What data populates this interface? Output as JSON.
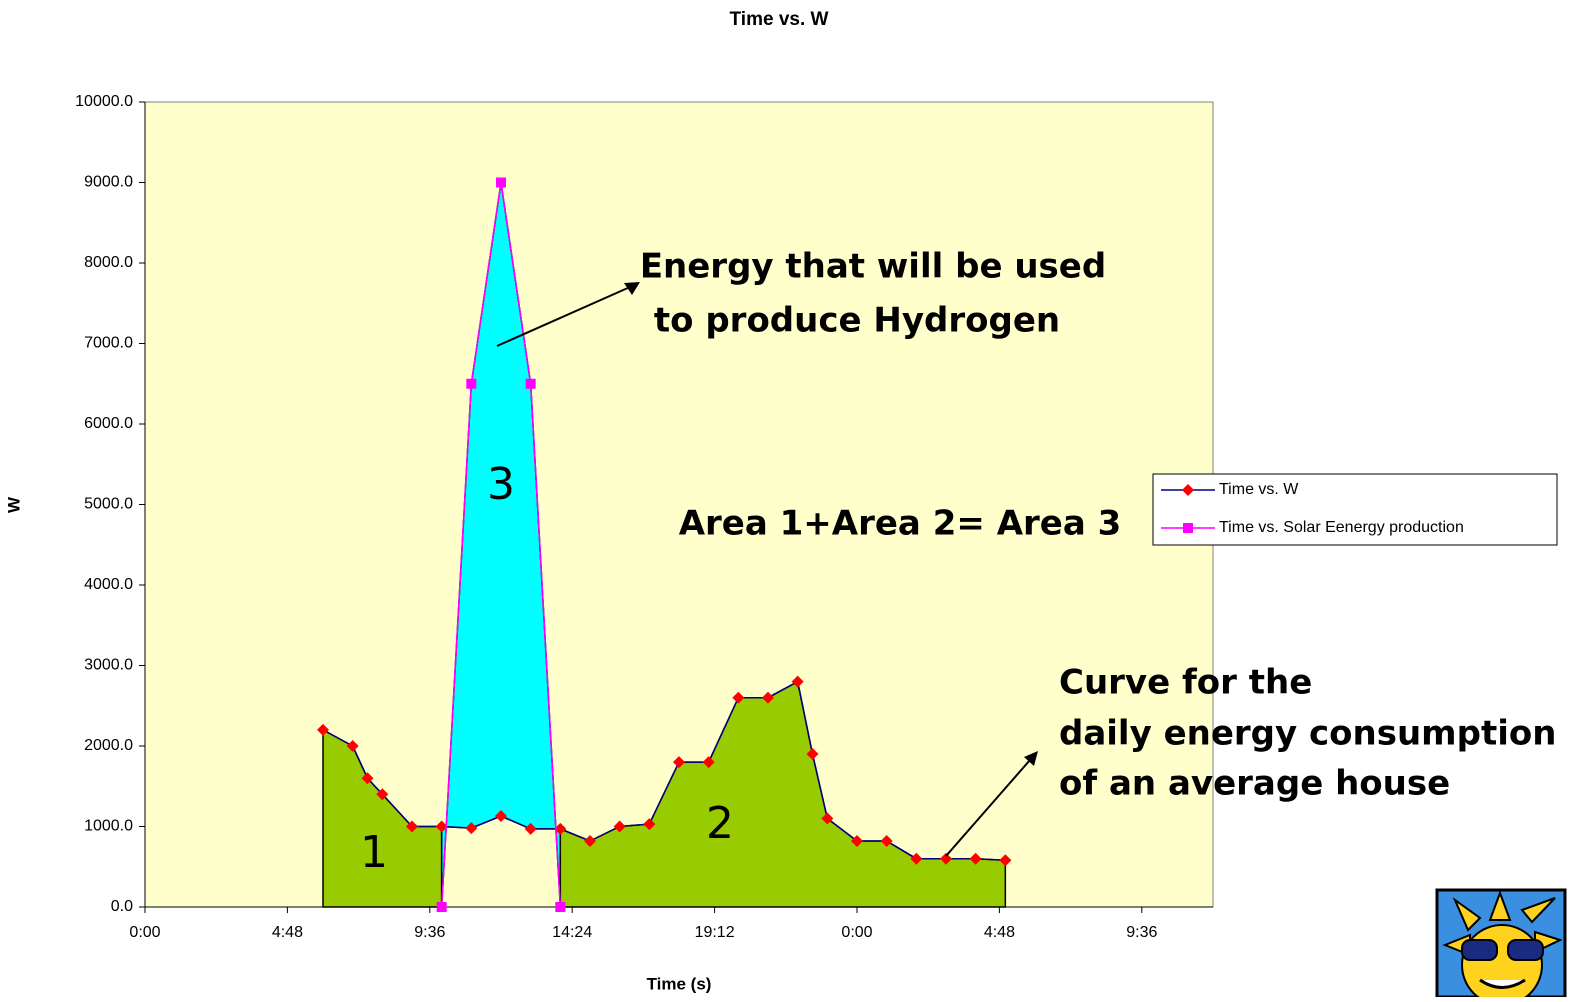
{
  "chart_data": {
    "type": "line",
    "title": "Time vs. W",
    "x_label": "Time (s)",
    "y_label": "W",
    "xlim": [
      0,
      36
    ],
    "xticks": [
      {
        "value": 0,
        "label": "0:00"
      },
      {
        "value": 4.8,
        "label": "4:48"
      },
      {
        "value": 9.6,
        "label": "9:36"
      },
      {
        "value": 14.4,
        "label": "14:24"
      },
      {
        "value": 19.2,
        "label": "19:12"
      },
      {
        "value": 24,
        "label": "0:00"
      },
      {
        "value": 28.8,
        "label": "4:48"
      },
      {
        "value": 33.6,
        "label": "9:36"
      }
    ],
    "ylim": [
      0,
      10000
    ],
    "yticks": [
      {
        "value": 0,
        "label": "0.0"
      },
      {
        "value": 1000,
        "label": "1000.0"
      },
      {
        "value": 2000,
        "label": "2000.0"
      },
      {
        "value": 3000,
        "label": "3000.0"
      },
      {
        "value": 4000,
        "label": "4000.0"
      },
      {
        "value": 5000,
        "label": "5000.0"
      },
      {
        "value": 6000,
        "label": "6000.0"
      },
      {
        "value": 7000,
        "label": "7000.0"
      },
      {
        "value": 8000,
        "label": "8000.0"
      },
      {
        "value": 9000,
        "label": "9000.0"
      },
      {
        "value": 10000,
        "label": "10000.0"
      }
    ],
    "grid": false,
    "legend": "right",
    "background": "#ffffcc",
    "series": [
      {
        "name": "Time vs. W",
        "color": "#000080",
        "marker": "diamond",
        "marker_color": "#ff0000",
        "x": [
          6,
          7,
          7.5,
          8,
          9,
          10,
          11,
          12,
          13,
          14,
          15,
          16,
          17,
          18,
          19,
          20,
          21,
          22,
          22.5,
          23,
          24,
          25,
          26,
          27,
          28,
          29
        ],
        "values": [
          2200,
          2000,
          1600,
          1400,
          1000,
          1000,
          980,
          1130,
          970,
          970,
          820,
          1000,
          1030,
          1800,
          1800,
          2600,
          2600,
          2800,
          1900,
          1100,
          820,
          820,
          600,
          600,
          600,
          580
        ]
      },
      {
        "name": "Time vs. Solar Eenergy production",
        "color": "#ff00ff",
        "marker": "square",
        "marker_color": "#ff00ff",
        "x": [
          10,
          11,
          12,
          13,
          14
        ],
        "values": [
          0,
          6500,
          9000,
          6500,
          0
        ]
      }
    ],
    "annotations": {
      "hydrogen": [
        "Energy that will be used",
        " to produce Hydrogen"
      ],
      "area_equation": "Area 1+Area 2= Area 3",
      "consumption": [
        "Curve for the",
        "daily energy consumption",
        "of an average house"
      ],
      "area_labels": [
        "1",
        "2",
        "3"
      ]
    }
  }
}
